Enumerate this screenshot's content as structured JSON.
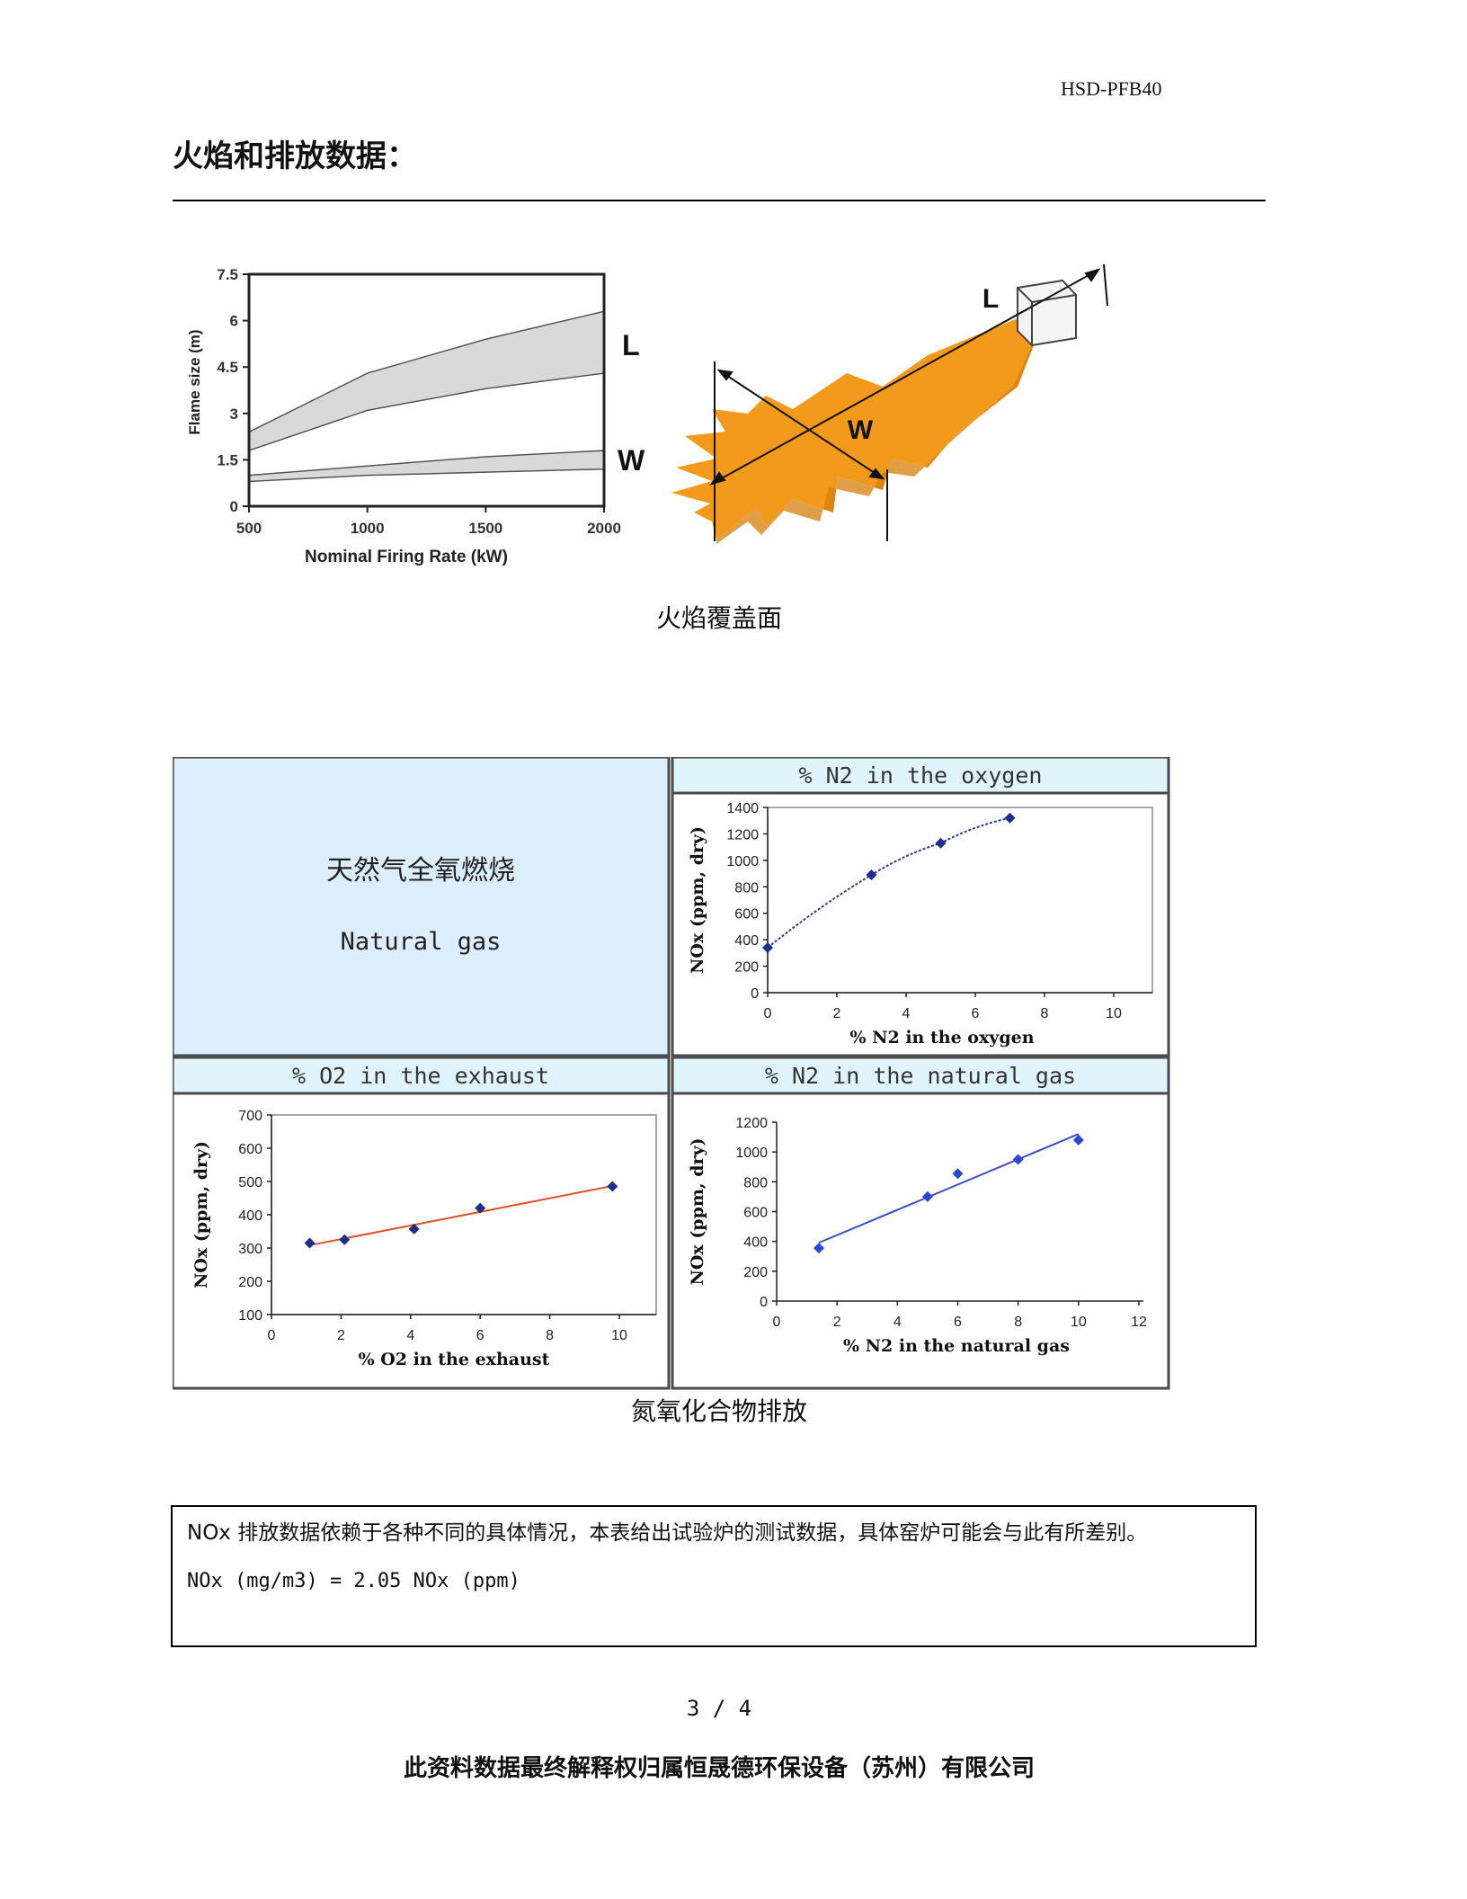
{
  "header": {
    "doc_code": "HSD-PFB40"
  },
  "section_title": "火焰和排放数据：",
  "flame_figure": {
    "ylabel": "Flame size (m)",
    "xlabel": "Nominal Firing Rate (kW)",
    "label_L": "L",
    "label_W": "W",
    "y_ticks": [
      "0",
      "1.5",
      "3",
      "4.5",
      "6",
      "7.5"
    ],
    "x_ticks": [
      "500",
      "1000",
      "1500",
      "2000"
    ],
    "diagram_label_L": "L",
    "diagram_label_W": "W",
    "flame_color": "#f39a1c",
    "band_color": "#d9d9d9"
  },
  "caption_flame": "火焰覆盖面",
  "nox_panel": {
    "main_title": "天然气全氧燃烧",
    "main_subtitle": "Natural gas",
    "header_color": "#dff4fb",
    "main_cell_color": "#dcedfb"
  },
  "caption_nox": "氮氧化合物排放",
  "note": {
    "text": "NOx 排放数据依赖于各种不同的具体情况，本表给出试验炉的测试数据，具体窑炉可能会与此有所差别。",
    "formula": "NOx (mg/m3) = 2.05 NOx (ppm)"
  },
  "page_number": "3 / 4",
  "footer": "此资料数据最终解释权归属恒晟德环保设备（苏州）有限公司",
  "chart_data": [
    {
      "type": "area",
      "xlabel": "Nominal Firing Rate (kW)",
      "ylabel": "Flame size (m)",
      "xlim": [
        500,
        2000
      ],
      "ylim": [
        0,
        7.5
      ],
      "x_ticks": [
        500,
        1000,
        1500,
        2000
      ],
      "y_ticks": [
        0,
        1.5,
        3,
        4.5,
        6,
        7.5
      ],
      "grid": false,
      "series": [
        {
          "name": "L",
          "x": [
            500,
            1000,
            1500,
            2000
          ],
          "lower": [
            1.8,
            3.1,
            3.8,
            4.3
          ],
          "upper": [
            2.4,
            4.3,
            5.4,
            6.3
          ]
        },
        {
          "name": "W",
          "x": [
            500,
            1000,
            1500,
            2000
          ],
          "lower": [
            0.8,
            1.0,
            1.1,
            1.2
          ],
          "upper": [
            1.0,
            1.3,
            1.6,
            1.8
          ]
        }
      ]
    },
    {
      "type": "scatter",
      "title": "% N2 in the oxygen",
      "xlabel": "% N2 in the oxygen",
      "ylabel": "NOx (ppm, dry)",
      "xlim": [
        0,
        10
      ],
      "ylim": [
        0,
        1400
      ],
      "x_ticks": [
        0,
        2,
        4,
        6,
        8,
        10
      ],
      "y_ticks": [
        0,
        200,
        400,
        600,
        800,
        1000,
        1200,
        1400
      ],
      "trend": "curve",
      "trend_color": "#2b3a8f",
      "marker_color": "#1c2d8c",
      "x": [
        0,
        3,
        5,
        7
      ],
      "y": [
        340,
        890,
        1130,
        1320
      ]
    },
    {
      "type": "scatter",
      "title": "% O2 in the exhaust",
      "xlabel": "% O2 in the exhaust",
      "ylabel": "NOx (ppm, dry)",
      "xlim": [
        0,
        10
      ],
      "ylim": [
        100,
        700
      ],
      "x_ticks": [
        0,
        2,
        4,
        6,
        8,
        10
      ],
      "y_ticks": [
        100,
        200,
        300,
        400,
        500,
        600,
        700
      ],
      "trend": "linear",
      "trend_color": "#e0502a",
      "marker_color": "#1c2d8c",
      "x": [
        1.1,
        2.1,
        4.1,
        6.0,
        9.8
      ],
      "y": [
        315,
        325,
        357,
        420,
        485
      ]
    },
    {
      "type": "scatter",
      "title": "% N2 in the natural gas",
      "xlabel": "% N2 in the natural gas",
      "ylabel": "NOx (ppm, dry)",
      "xlim": [
        0,
        12
      ],
      "ylim": [
        0,
        1200
      ],
      "x_ticks": [
        0,
        2,
        4,
        6,
        8,
        10,
        12
      ],
      "y_ticks": [
        0,
        200,
        400,
        600,
        800,
        1000,
        1200
      ],
      "trend": "linear",
      "trend_color": "#3a4fc4",
      "marker_color": "#2b45d6",
      "x": [
        1.4,
        5,
        6,
        8,
        10
      ],
      "y": [
        355,
        700,
        855,
        950,
        1080
      ]
    }
  ]
}
